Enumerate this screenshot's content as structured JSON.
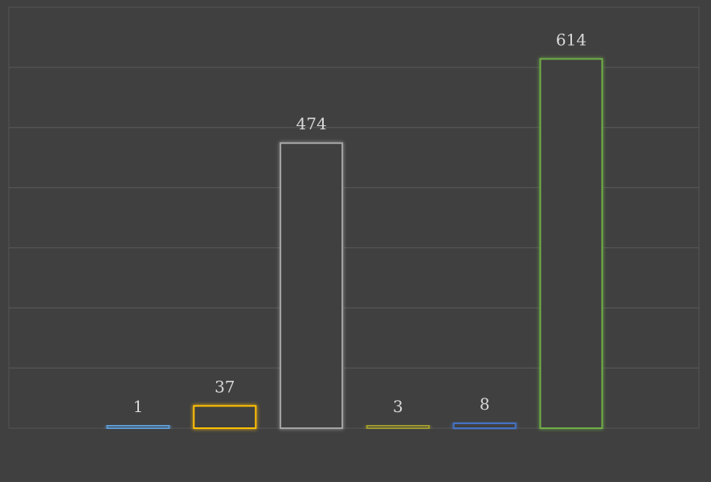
{
  "chart_data": {
    "type": "bar",
    "values": [
      1,
      37,
      474,
      3,
      8,
      614
    ],
    "ylim": [
      0,
      700
    ],
    "grid": true,
    "data_labels": [
      "1",
      "37",
      "474",
      "3",
      "8",
      "614"
    ],
    "bar_colors": [
      "#5B9BD5",
      "#FFC000",
      "#A5A5A5",
      "#9E9A2E",
      "#4472C4",
      "#70AD47"
    ]
  },
  "colors": {
    "background": "#404040",
    "gridline": "#5A5A5A",
    "label": "#D9D9D9",
    "bar_fill": "#404040"
  }
}
